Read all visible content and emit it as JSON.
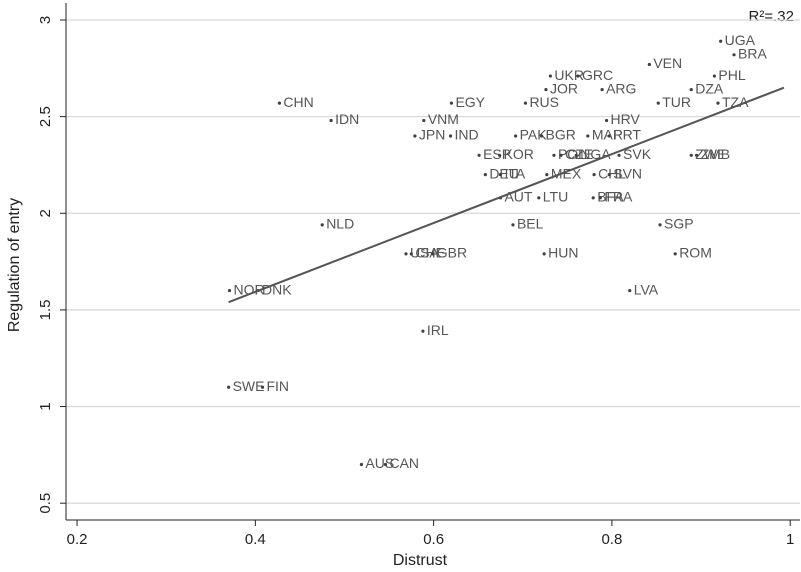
{
  "chart_data": {
    "type": "scatter",
    "x_label": "Distrust",
    "y_label": "Regulation of entry",
    "annotation": "R²=.32",
    "labels": [
      "UGA",
      "BRA",
      "VEN",
      "PHL",
      "UKR",
      "GRC",
      "JOR",
      "ARG",
      "DZA",
      "CHN",
      "EGY",
      "RUS",
      "TUR",
      "TZA",
      "IDN",
      "VNM",
      "HRV",
      "JPN",
      "IND",
      "PAK",
      "BGR",
      "MAR",
      "PRT",
      "ESP",
      "KOR",
      "POL",
      "CZE",
      "NGA",
      "SVK",
      "ZWE",
      "ZMB",
      "DEU",
      "ITA",
      "MEX",
      "CHL",
      "SVN",
      "AUT",
      "LTU",
      "BFA",
      "FRA",
      "BEL",
      "NLD",
      "SGP",
      "USA",
      "CHE",
      "GBR",
      "HUN",
      "ROM",
      "NOR",
      "DNK",
      "LVA",
      "IRL",
      "SWE",
      "FIN",
      "AUS",
      "CAN"
    ],
    "x": [
      0.922,
      0.937,
      0.842,
      0.915,
      0.731,
      0.762,
      0.726,
      0.789,
      0.889,
      0.427,
      0.62,
      0.703,
      0.852,
      0.919,
      0.485,
      0.589,
      0.794,
      0.579,
      0.619,
      0.692,
      0.721,
      0.773,
      0.797,
      0.651,
      0.674,
      0.735,
      0.743,
      0.76,
      0.808,
      0.889,
      0.895,
      0.658,
      0.675,
      0.727,
      0.78,
      0.797,
      0.675,
      0.718,
      0.779,
      0.787,
      0.689,
      0.475,
      0.854,
      0.569,
      0.575,
      0.599,
      0.724,
      0.871,
      0.371,
      0.403,
      0.82,
      0.588,
      0.37,
      0.408,
      0.519,
      0.546
    ],
    "values": [
      2.89,
      2.82,
      2.77,
      2.71,
      2.71,
      2.71,
      2.64,
      2.64,
      2.64,
      2.57,
      2.57,
      2.57,
      2.57,
      2.57,
      2.48,
      2.48,
      2.48,
      2.4,
      2.4,
      2.4,
      2.4,
      2.4,
      2.4,
      2.3,
      2.3,
      2.3,
      2.3,
      2.3,
      2.3,
      2.3,
      2.3,
      2.2,
      2.2,
      2.2,
      2.2,
      2.2,
      2.08,
      2.08,
      2.08,
      2.08,
      1.94,
      1.94,
      1.94,
      1.79,
      1.79,
      1.79,
      1.79,
      1.79,
      1.6,
      1.6,
      1.6,
      1.39,
      1.1,
      1.1,
      0.7,
      0.7
    ],
    "color": "#404040",
    "label_color": "#555555",
    "fit_line": {
      "x": [
        0.37,
        0.993
      ],
      "values": [
        1.54,
        2.65
      ],
      "color": "#555555"
    },
    "xlim": [
      0.1876,
      1.011
    ],
    "ylim": [
      0.413,
      3.088
    ],
    "xticks": [
      0.2,
      0.4,
      0.6,
      0.8,
      1
    ],
    "yticks": [
      3,
      2.5,
      2,
      1.5,
      1,
      0.5
    ],
    "grid": true
  }
}
